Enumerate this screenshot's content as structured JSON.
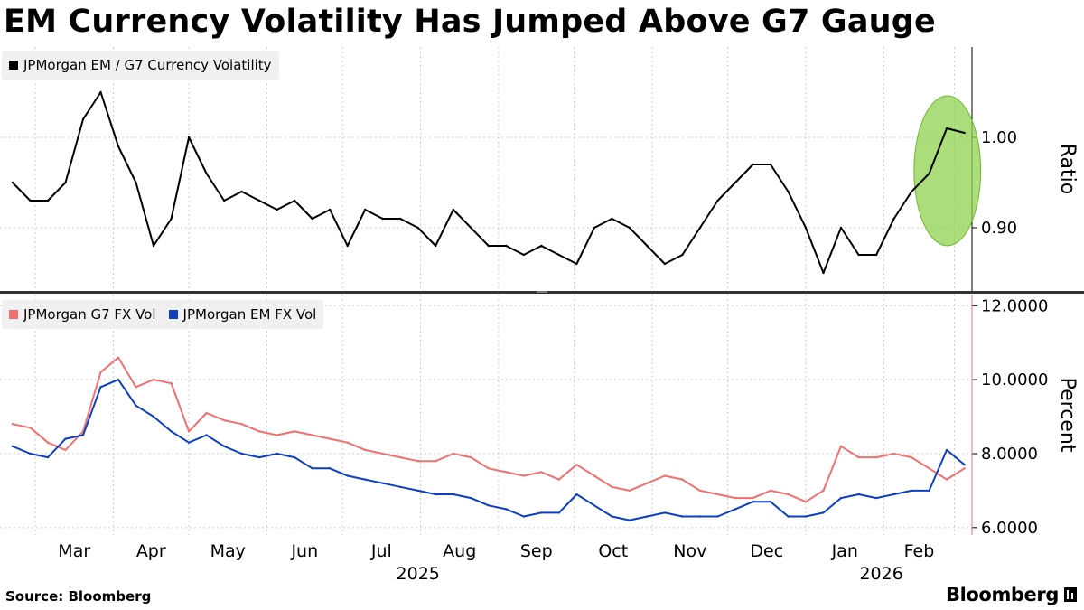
{
  "title": "EM Currency Volatility Has Jumped Above G7 Gauge",
  "source": "Source: Bloomberg",
  "brand": "Bloomberg",
  "colors": {
    "em_g7_ratio": "#000000",
    "g7": "#f07070",
    "em": "#0d3fc4",
    "highlight": "#8fd14f"
  },
  "chart_data": [
    {
      "type": "line",
      "panel": "top",
      "ylabel": "Ratio",
      "yticks": [
        "1.00",
        "0.90"
      ],
      "ylim": [
        0.83,
        1.1
      ],
      "x": [
        "2025-02-20",
        "2025-02-27",
        "2025-03-06",
        "2025-03-13",
        "2025-03-20",
        "2025-03-27",
        "2025-04-03",
        "2025-04-10",
        "2025-04-17",
        "2025-04-24",
        "2025-05-01",
        "2025-05-08",
        "2025-05-15",
        "2025-05-22",
        "2025-05-29",
        "2025-06-05",
        "2025-06-12",
        "2025-06-19",
        "2025-06-26",
        "2025-07-03",
        "2025-07-10",
        "2025-07-17",
        "2025-07-24",
        "2025-07-31",
        "2025-08-07",
        "2025-08-14",
        "2025-08-21",
        "2025-08-28",
        "2025-09-04",
        "2025-09-11",
        "2025-09-18",
        "2025-09-25",
        "2025-10-02",
        "2025-10-09",
        "2025-10-16",
        "2025-10-23",
        "2025-10-30",
        "2025-11-06",
        "2025-11-13",
        "2025-11-20",
        "2025-11-27",
        "2025-12-04",
        "2025-12-11",
        "2025-12-18",
        "2025-12-25",
        "2026-01-01",
        "2026-01-08",
        "2026-01-15",
        "2026-01-22",
        "2026-01-29",
        "2026-02-05",
        "2026-02-12",
        "2026-02-19",
        "2026-02-26",
        "2026-03-05"
      ],
      "series": [
        {
          "name": "JPMorgan EM / G7 Currency Volatility",
          "values": [
            0.95,
            0.93,
            0.93,
            0.95,
            1.02,
            1.05,
            0.99,
            0.95,
            0.88,
            0.91,
            1.0,
            0.96,
            0.93,
            0.94,
            0.93,
            0.92,
            0.93,
            0.91,
            0.92,
            0.88,
            0.92,
            0.91,
            0.91,
            0.9,
            0.88,
            0.92,
            0.9,
            0.88,
            0.88,
            0.87,
            0.88,
            0.87,
            0.86,
            0.9,
            0.91,
            0.9,
            0.88,
            0.86,
            0.87,
            0.9,
            0.93,
            0.95,
            0.97,
            0.97,
            0.94,
            0.9,
            0.85,
            0.9,
            0.87,
            0.87,
            0.91,
            0.94,
            0.96,
            1.01,
            1.005
          ]
        }
      ],
      "annotations": [
        {
          "type": "ellipse-highlight",
          "x_range": [
            "2026-02-18",
            "2026-03-05"
          ]
        }
      ]
    },
    {
      "type": "line",
      "panel": "bottom",
      "ylabel": "Percent",
      "yticks": [
        "12.0000",
        "10.0000",
        "8.0000",
        "6.0000"
      ],
      "ylim": [
        5.8,
        12.3
      ],
      "xticks": [
        "Mar",
        "Apr",
        "May",
        "Jun",
        "Jul",
        "Aug",
        "Sep",
        "Oct",
        "Nov",
        "Dec",
        "Jan",
        "Feb"
      ],
      "year_labels": [
        "2025",
        "2026"
      ],
      "series": [
        {
          "name": "JPMorgan G7 FX Vol",
          "values": [
            8.8,
            8.7,
            8.3,
            8.1,
            8.6,
            10.2,
            10.6,
            9.8,
            10.0,
            9.9,
            8.6,
            9.1,
            8.9,
            8.8,
            8.6,
            8.5,
            8.6,
            8.5,
            8.4,
            8.3,
            8.1,
            8.0,
            7.9,
            7.8,
            7.8,
            8.0,
            7.9,
            7.6,
            7.5,
            7.4,
            7.5,
            7.3,
            7.7,
            7.4,
            7.1,
            7.0,
            7.2,
            7.4,
            7.3,
            7.0,
            6.9,
            6.8,
            6.8,
            7.0,
            6.9,
            6.7,
            7.0,
            8.2,
            7.9,
            7.9,
            8.0,
            7.9,
            7.6,
            7.3,
            7.6
          ]
        },
        {
          "name": "JPMorgan EM FX Vol",
          "values": [
            8.2,
            8.0,
            7.9,
            8.4,
            8.5,
            9.8,
            10.0,
            9.3,
            9.0,
            8.6,
            8.3,
            8.5,
            8.2,
            8.0,
            7.9,
            8.0,
            7.9,
            7.6,
            7.6,
            7.4,
            7.3,
            7.2,
            7.1,
            7.0,
            6.9,
            6.9,
            6.8,
            6.6,
            6.5,
            6.3,
            6.4,
            6.4,
            6.9,
            6.6,
            6.3,
            6.2,
            6.3,
            6.4,
            6.3,
            6.3,
            6.3,
            6.5,
            6.7,
            6.7,
            6.3,
            6.3,
            6.4,
            6.8,
            6.9,
            6.8,
            6.9,
            7.0,
            7.0,
            8.1,
            7.7
          ]
        }
      ]
    }
  ]
}
